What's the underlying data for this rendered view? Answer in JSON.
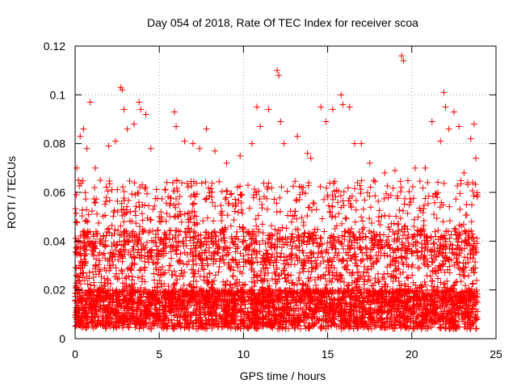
{
  "chart_data": {
    "type": "scatter",
    "title": "Day 054 of 2018, Rate Of TEC Index for receiver scoa",
    "xlabel": "GPS time / hours",
    "ylabel": "ROTI / TECUs",
    "xlim": [
      0,
      25
    ],
    "ylim": [
      0,
      0.12
    ],
    "xticks": [
      0,
      5,
      10,
      15,
      20,
      25
    ],
    "xtick_labels": [
      "0",
      "5",
      "10",
      "15",
      "20",
      "25"
    ],
    "yticks": [
      0,
      0.02,
      0.04,
      0.06,
      0.08,
      0.1,
      0.12
    ],
    "ytick_labels": [
      "0",
      "0.02",
      "0.04",
      "0.06",
      "0.08",
      "0.1",
      "0.12"
    ],
    "grid": true,
    "marker": "plus",
    "series_color": "#ff0000",
    "x_data_range": [
      0,
      23.9
    ],
    "points": [
      [
        0.1,
        0.07
      ],
      [
        0.2,
        0.065
      ],
      [
        0.3,
        0.083
      ],
      [
        0.5,
        0.086
      ],
      [
        0.7,
        0.078
      ],
      [
        0.9,
        0.097
      ],
      [
        1.2,
        0.07
      ],
      [
        2.0,
        0.079
      ],
      [
        2.4,
        0.081
      ],
      [
        2.7,
        0.103
      ],
      [
        2.8,
        0.102
      ],
      [
        2.9,
        0.094
      ],
      [
        3.1,
        0.086
      ],
      [
        3.5,
        0.088
      ],
      [
        3.8,
        0.097
      ],
      [
        3.9,
        0.094
      ],
      [
        4.2,
        0.092
      ],
      [
        4.5,
        0.078
      ],
      [
        5.9,
        0.093
      ],
      [
        6.0,
        0.087
      ],
      [
        6.5,
        0.081
      ],
      [
        7.0,
        0.08
      ],
      [
        7.4,
        0.078
      ],
      [
        7.8,
        0.086
      ],
      [
        8.3,
        0.077
      ],
      [
        9.0,
        0.072
      ],
      [
        9.8,
        0.075
      ],
      [
        10.5,
        0.08
      ],
      [
        10.8,
        0.095
      ],
      [
        11.0,
        0.087
      ],
      [
        11.5,
        0.094
      ],
      [
        12.0,
        0.11
      ],
      [
        12.1,
        0.108
      ],
      [
        12.2,
        0.089
      ],
      [
        12.4,
        0.08
      ],
      [
        13.2,
        0.083
      ],
      [
        13.8,
        0.076
      ],
      [
        14.0,
        0.074
      ],
      [
        14.6,
        0.095
      ],
      [
        14.9,
        0.089
      ],
      [
        15.3,
        0.094
      ],
      [
        15.8,
        0.1
      ],
      [
        15.9,
        0.096
      ],
      [
        16.3,
        0.095
      ],
      [
        16.6,
        0.08
      ],
      [
        17.0,
        0.08
      ],
      [
        17.5,
        0.072
      ],
      [
        18.4,
        0.068
      ],
      [
        19.0,
        0.069
      ],
      [
        19.4,
        0.116
      ],
      [
        19.5,
        0.114
      ],
      [
        20.2,
        0.07
      ],
      [
        20.8,
        0.07
      ],
      [
        21.2,
        0.089
      ],
      [
        21.7,
        0.081
      ],
      [
        21.9,
        0.101
      ],
      [
        22.0,
        0.095
      ],
      [
        22.2,
        0.086
      ],
      [
        22.5,
        0.093
      ],
      [
        22.8,
        0.087
      ],
      [
        23.1,
        0.068
      ],
      [
        23.5,
        0.082
      ],
      [
        23.7,
        0.088
      ],
      [
        23.8,
        0.074
      ]
    ]
  }
}
